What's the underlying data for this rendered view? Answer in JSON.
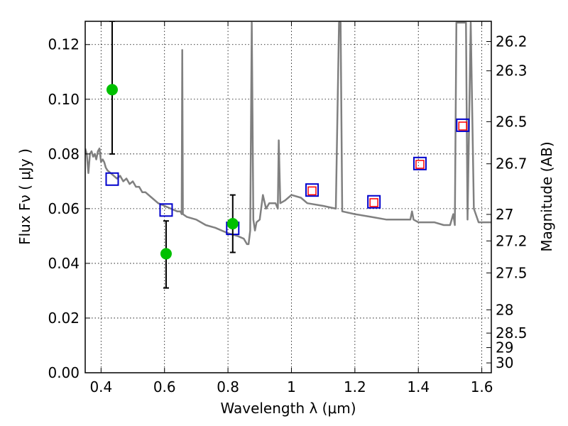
{
  "chart_data": {
    "type": "scatter",
    "xlabel": "Wavelength  λ (μm)",
    "ylabel": "Flux  Fν  ( μJy )",
    "ylabel_right": "Magnitude (AB)",
    "xlim": [
      0.35,
      1.63
    ],
    "ylim": [
      0.0,
      0.1285
    ],
    "grid": true,
    "x_ticks": [
      0.4,
      0.6,
      0.8,
      1.0,
      1.2,
      1.4,
      1.6
    ],
    "x_tick_labels": [
      "0.4",
      "0.6",
      "0.8",
      "1",
      "1.2",
      "1.4",
      "1.6"
    ],
    "y_ticks": [
      0.0,
      0.02,
      0.04,
      0.06,
      0.08,
      0.1,
      0.12
    ],
    "y_tick_labels": [
      "0.00",
      "0.02",
      "0.04",
      "0.06",
      "0.08",
      "0.10",
      "0.12"
    ],
    "mag_ticks": [
      {
        "label": "26.2",
        "flux": 0.1211
      },
      {
        "label": "26.3",
        "flux": 0.1104
      },
      {
        "label": "26.5",
        "flux": 0.0918
      },
      {
        "label": "26.7",
        "flux": 0.0764
      },
      {
        "label": "27",
        "flux": 0.0579
      },
      {
        "label": "27.2",
        "flux": 0.0482
      },
      {
        "label": "27.5",
        "flux": 0.0365
      },
      {
        "label": "28",
        "flux": 0.023
      },
      {
        "label": "28.5",
        "flux": 0.0145
      },
      {
        "label": "29",
        "flux": 0.0092
      },
      {
        "label": "30",
        "flux": 0.0036
      }
    ],
    "series": [
      {
        "type": "line",
        "color": "#808080",
        "points": [
          [
            0.35,
            0.082
          ],
          [
            0.355,
            0.08
          ],
          [
            0.36,
            0.073
          ],
          [
            0.365,
            0.08
          ],
          [
            0.37,
            0.081
          ],
          [
            0.375,
            0.079
          ],
          [
            0.38,
            0.08
          ],
          [
            0.385,
            0.078
          ],
          [
            0.39,
            0.081
          ],
          [
            0.395,
            0.082
          ],
          [
            0.4,
            0.077
          ],
          [
            0.405,
            0.078
          ],
          [
            0.41,
            0.077
          ],
          [
            0.415,
            0.075
          ],
          [
            0.42,
            0.074
          ],
          [
            0.43,
            0.073
          ],
          [
            0.44,
            0.072
          ],
          [
            0.45,
            0.071
          ],
          [
            0.46,
            0.072
          ],
          [
            0.47,
            0.07
          ],
          [
            0.48,
            0.071
          ],
          [
            0.49,
            0.069
          ],
          [
            0.5,
            0.07
          ],
          [
            0.51,
            0.068
          ],
          [
            0.52,
            0.068
          ],
          [
            0.53,
            0.066
          ],
          [
            0.54,
            0.066
          ],
          [
            0.56,
            0.064
          ],
          [
            0.58,
            0.062
          ],
          [
            0.6,
            0.061
          ],
          [
            0.62,
            0.06
          ],
          [
            0.64,
            0.059
          ],
          [
            0.65,
            0.059
          ],
          [
            0.654,
            0.058
          ],
          [
            0.656,
            0.118
          ],
          [
            0.658,
            0.058
          ],
          [
            0.67,
            0.057
          ],
          [
            0.7,
            0.056
          ],
          [
            0.73,
            0.054
          ],
          [
            0.76,
            0.053
          ],
          [
            0.8,
            0.051
          ],
          [
            0.83,
            0.05
          ],
          [
            0.85,
            0.049
          ],
          [
            0.86,
            0.047
          ],
          [
            0.865,
            0.047
          ],
          [
            0.87,
            0.052
          ],
          [
            0.875,
            0.128
          ],
          [
            0.88,
            0.056
          ],
          [
            0.885,
            0.052
          ],
          [
            0.89,
            0.055
          ],
          [
            0.9,
            0.056
          ],
          [
            0.91,
            0.065
          ],
          [
            0.92,
            0.06
          ],
          [
            0.93,
            0.062
          ],
          [
            0.95,
            0.062
          ],
          [
            0.957,
            0.06
          ],
          [
            0.96,
            0.085
          ],
          [
            0.965,
            0.062
          ],
          [
            0.98,
            0.063
          ],
          [
            1.0,
            0.065
          ],
          [
            1.03,
            0.064
          ],
          [
            1.05,
            0.062
          ],
          [
            1.1,
            0.061
          ],
          [
            1.14,
            0.06
          ],
          [
            1.15,
            0.128
          ],
          [
            1.155,
            0.128
          ],
          [
            1.16,
            0.059
          ],
          [
            1.2,
            0.058
          ],
          [
            1.25,
            0.057
          ],
          [
            1.3,
            0.056
          ],
          [
            1.35,
            0.056
          ],
          [
            1.375,
            0.056
          ],
          [
            1.38,
            0.059
          ],
          [
            1.385,
            0.056
          ],
          [
            1.4,
            0.055
          ],
          [
            1.45,
            0.055
          ],
          [
            1.48,
            0.054
          ],
          [
            1.5,
            0.054
          ],
          [
            1.51,
            0.058
          ],
          [
            1.515,
            0.054
          ],
          [
            1.52,
            0.128
          ],
          [
            1.55,
            0.128
          ],
          [
            1.555,
            0.056
          ],
          [
            1.565,
            0.128
          ],
          [
            1.575,
            0.06
          ],
          [
            1.59,
            0.055
          ],
          [
            1.63,
            0.055
          ]
        ]
      },
      {
        "type": "observed",
        "color": "#00c000",
        "points": [
          {
            "x": 0.435,
            "y": 0.1035,
            "err_low": 0.08,
            "err_high": 0.1285
          },
          {
            "x": 0.605,
            "y": 0.0435,
            "err_low": 0.031,
            "err_high": 0.0555
          },
          {
            "x": 0.815,
            "y": 0.0545,
            "err_low": 0.044,
            "err_high": 0.065
          }
        ]
      },
      {
        "type": "model_blue",
        "color": "#0000cc",
        "points": [
          {
            "x": 0.435,
            "y": 0.0708
          },
          {
            "x": 0.605,
            "y": 0.0595
          },
          {
            "x": 0.815,
            "y": 0.0528
          },
          {
            "x": 1.065,
            "y": 0.0668
          },
          {
            "x": 1.26,
            "y": 0.0625
          },
          {
            "x": 1.405,
            "y": 0.0765
          },
          {
            "x": 1.54,
            "y": 0.0905
          }
        ]
      },
      {
        "type": "model_red",
        "color": "#ff0000",
        "points": [
          {
            "x": 1.065,
            "y": 0.0665
          },
          {
            "x": 1.26,
            "y": 0.0622
          },
          {
            "x": 1.405,
            "y": 0.0762
          },
          {
            "x": 1.54,
            "y": 0.0902
          }
        ]
      }
    ]
  }
}
